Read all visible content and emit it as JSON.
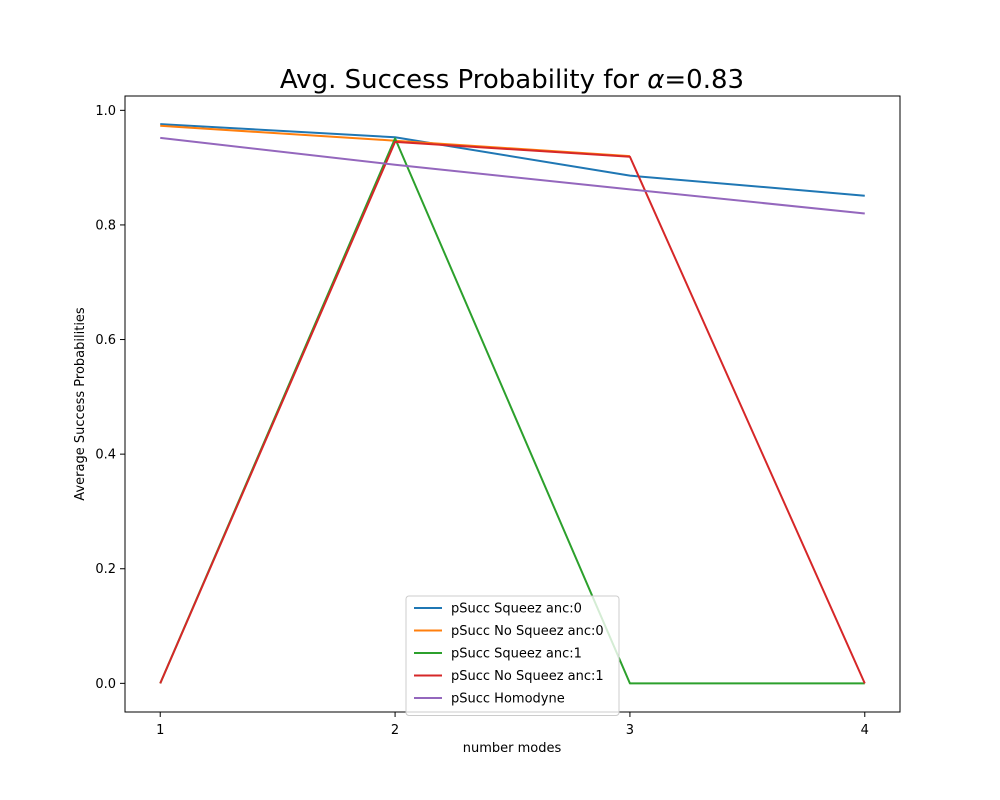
{
  "chart_data": {
    "type": "line",
    "title_prefix": "Avg. Success Probability for ",
    "title_symbol": "α",
    "title_suffix": "=0.83",
    "xlabel": "number modes",
    "ylabel": "Average Success Probabilities",
    "x": [
      1,
      2,
      3,
      4
    ],
    "xticks": [
      "1",
      "2",
      "3",
      "4"
    ],
    "yticks": [
      "0.0",
      "0.2",
      "0.4",
      "0.6",
      "0.8",
      "1.0"
    ],
    "xlim": [
      0.85,
      4.15
    ],
    "ylim": [
      -0.05,
      1.025
    ],
    "grid": false,
    "legend_position": "lower center",
    "series": [
      {
        "name": "pSucc Squeez anc:0",
        "color": "#1f77b4",
        "values": [
          0.976,
          0.953,
          0.886,
          0.851
        ]
      },
      {
        "name": "pSucc No Squeez anc:0",
        "color": "#ff7f0e",
        "values": [
          0.973,
          0.947,
          0.92,
          null
        ]
      },
      {
        "name": "pSucc Squeez anc:1",
        "color": "#2ca02c",
        "values": [
          0.0,
          0.951,
          0.0,
          0.0
        ]
      },
      {
        "name": "pSucc No Squeez anc:1",
        "color": "#d62728",
        "values": [
          0.0,
          0.945,
          0.919,
          0.0
        ]
      },
      {
        "name": "pSucc Homodyne",
        "color": "#9467bd",
        "values": [
          0.952,
          0.905,
          0.862,
          0.82
        ]
      }
    ]
  }
}
